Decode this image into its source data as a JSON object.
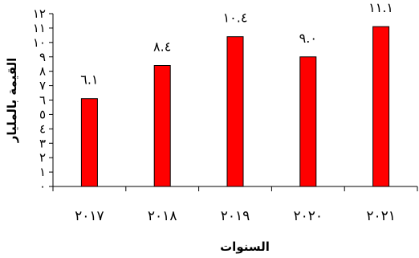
{
  "chart_data": {
    "type": "bar",
    "title": "",
    "xlabel": "السنوات",
    "ylabel": "القيمة بالمليار",
    "categories": [
      "٢٠١٧",
      "٢٠١٨",
      "٢٠١٩",
      "٢٠٢٠",
      "٢٠٢١"
    ],
    "series": [
      {
        "values": [
          6.1,
          8.4,
          10.4,
          9.0,
          11.1
        ]
      }
    ],
    "data_labels": [
      "٦.١",
      "٨.٤",
      "١٠.٤",
      "٩.٠",
      "١١.١"
    ],
    "ylim": [
      0,
      12
    ],
    "yticks": [
      {
        "value": 0,
        "label": "٠"
      },
      {
        "value": 1,
        "label": "١"
      },
      {
        "value": 2,
        "label": "٢"
      },
      {
        "value": 3,
        "label": "٣"
      },
      {
        "value": 4,
        "label": "٤"
      },
      {
        "value": 5,
        "label": "٥"
      },
      {
        "value": 6,
        "label": "٦"
      },
      {
        "value": 7,
        "label": "٧"
      },
      {
        "value": 8,
        "label": "٨"
      },
      {
        "value": 9,
        "label": "٩"
      },
      {
        "value": 10,
        "label": "١٠"
      },
      {
        "value": 11,
        "label": "١١"
      },
      {
        "value": 12,
        "label": "١٢"
      }
    ],
    "grid": false,
    "legend": "none",
    "bar_color": "#ff0000",
    "bar_edge_color": "#000000"
  }
}
